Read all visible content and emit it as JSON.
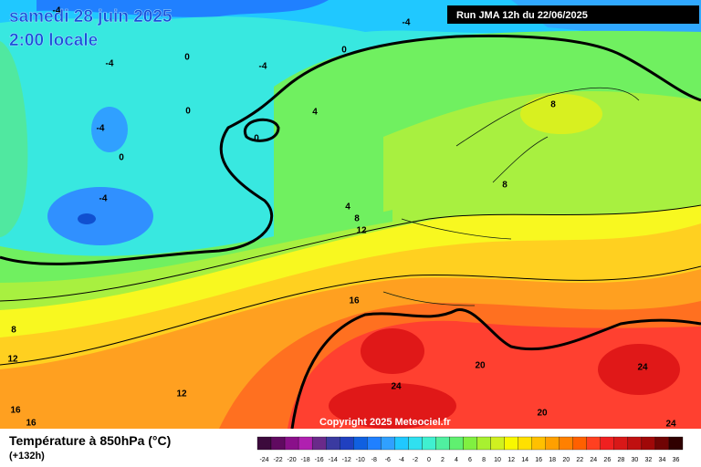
{
  "header": {
    "date": "samedi 28 juin 2025",
    "time": "2:00 locale",
    "run": "Run JMA 12h du 22/06/2025"
  },
  "map": {
    "copyright": "Copyright 2025 Meteociel.fr",
    "contour_labels": [
      -4,
      -4,
      -4,
      0,
      -4,
      0,
      0,
      4,
      -4,
      0,
      0,
      -4,
      4,
      8,
      12,
      8,
      8,
      16,
      8,
      12,
      20,
      24,
      24,
      12,
      16,
      16,
      20,
      24
    ]
  },
  "footer": {
    "title": "Température à 850hPa (°C)",
    "lead": "(+132h)"
  },
  "legend": {
    "ticks": [
      -24,
      -22,
      -20,
      -18,
      -16,
      -14,
      -12,
      -10,
      -8,
      -6,
      -4,
      -2,
      0,
      2,
      4,
      6,
      8,
      10,
      12,
      14,
      16,
      18,
      20,
      22,
      24,
      26,
      28,
      30,
      32,
      34,
      36
    ],
    "colors": [
      "#3c0a3c",
      "#600a60",
      "#8a108a",
      "#b020b0",
      "#6a2a8a",
      "#3a3aa0",
      "#2040c0",
      "#1060e0",
      "#2080ff",
      "#30a0ff",
      "#20c8ff",
      "#30e0f0",
      "#40f0d0",
      "#50f0a0",
      "#60f070",
      "#80f040",
      "#a8f030",
      "#d0f020",
      "#f8f800",
      "#ffe000",
      "#ffc000",
      "#ffa000",
      "#ff8000",
      "#ff6000",
      "#ff4020",
      "#f02020",
      "#d81818",
      "#c01010",
      "#a00808",
      "#700404",
      "#300000"
    ]
  }
}
